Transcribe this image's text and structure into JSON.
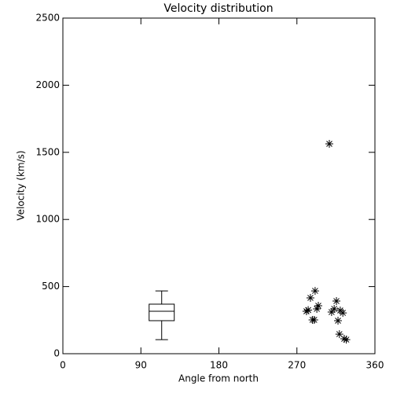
{
  "chart_data": {
    "type": "scatter",
    "title": "Velocity distribution",
    "x_label": "Angle from north",
    "y_label": "Velocity (km/s)",
    "x": [
      281,
      283,
      285.6,
      291,
      288,
      290,
      294.7,
      293,
      307.4,
      310,
      313,
      315.6,
      317.4,
      320,
      323,
      319,
      324.6,
      327
    ],
    "values": [
      316,
      325,
      416,
      468,
      252,
      252,
      357,
      334,
      1563,
      310,
      334,
      392,
      246,
      322,
      304,
      146,
      111,
      105
    ],
    "box": {
      "x": 114,
      "min": 105,
      "q1": 246,
      "median": 316,
      "q3": 369,
      "max": 468
    },
    "color": "#000000",
    "xlim": [
      0,
      360
    ],
    "xticks": [
      0,
      90,
      180,
      270,
      360
    ],
    "ylim": [
      0,
      2500
    ],
    "yticks": [
      0,
      500,
      1000,
      1500,
      2000,
      2500
    ]
  }
}
